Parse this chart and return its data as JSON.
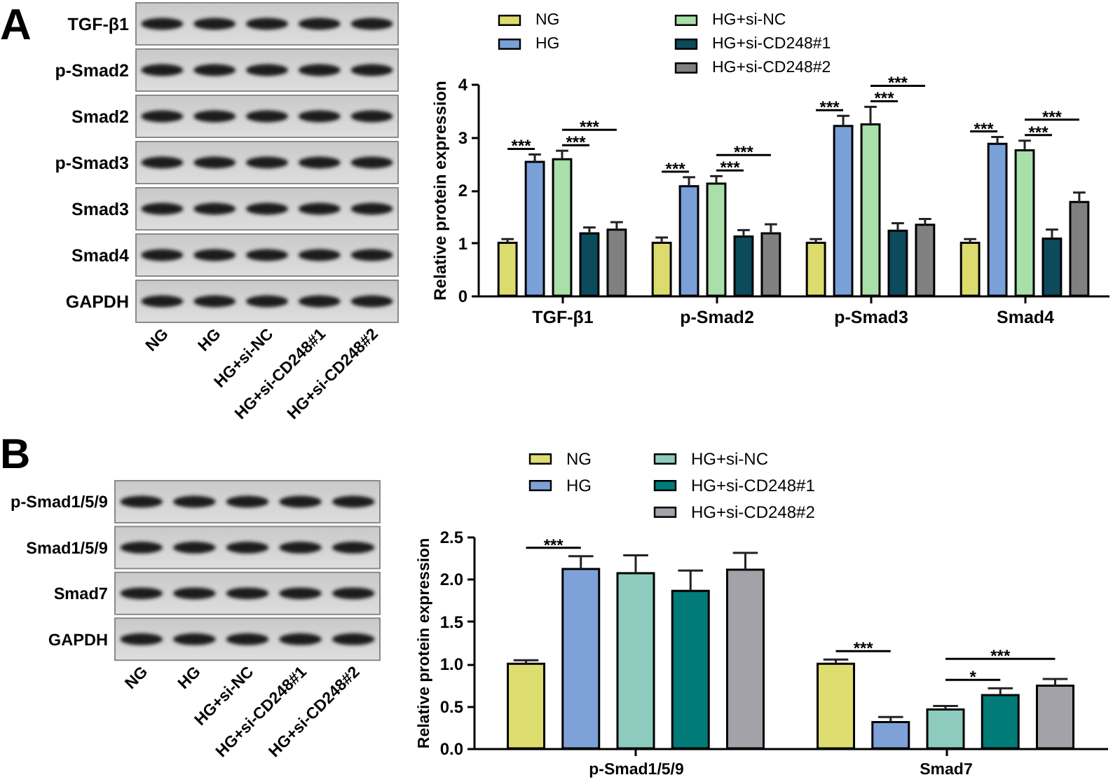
{
  "chart_data": [
    {
      "type": "other",
      "title": "A",
      "categories": [
        "NG",
        "HG",
        "HG+si-NC",
        "HG+si-CD248#1",
        "HG+si-CD248#2"
      ],
      "annotations": [
        "TGF-β1",
        "p-Smad2",
        "Smad2",
        "p-Smad3",
        "Smad3",
        "Smad4",
        "GAPDH"
      ]
    },
    {
      "type": "bar",
      "categories": [
        "TGF-β1",
        "p-Smad2",
        "p-Smad3",
        "Smad4"
      ],
      "ylabel": "Relative protein expression",
      "ylim": [
        0,
        4
      ],
      "yticks": [
        0,
        1,
        2,
        3,
        4
      ],
      "legend": "top",
      "series": [
        {
          "name": "NG",
          "color": "#dcdc6e",
          "values": [
            1.0,
            1.0,
            1.0,
            1.0
          ],
          "errors": [
            [
              1.0,
              1.07
            ],
            [
              1.0,
              1.1
            ],
            [
              1.0,
              1.07
            ],
            [
              1.0,
              1.07
            ]
          ]
        },
        {
          "name": "HG",
          "color": "#7aa0d8",
          "values": [
            2.53,
            2.07,
            3.21,
            2.87
          ],
          "errors": [
            [
              2.53,
              2.67
            ],
            [
              2.07,
              2.24
            ],
            [
              3.21,
              3.4
            ],
            [
              2.87,
              3.0
            ]
          ]
        },
        {
          "name": "HG+si-NC",
          "color": "#a9dfa9",
          "values": [
            2.58,
            2.12,
            3.24,
            2.75
          ],
          "errors": [
            [
              2.58,
              2.74
            ],
            [
              2.12,
              2.26
            ],
            [
              3.24,
              3.57
            ],
            [
              2.75,
              2.93
            ]
          ]
        },
        {
          "name": "HG+si-CD248#1",
          "color": "#0b4b5c",
          "values": [
            1.18,
            1.12,
            1.23,
            1.08
          ],
          "errors": [
            [
              1.18,
              1.29
            ],
            [
              1.12,
              1.24
            ],
            [
              1.23,
              1.37
            ],
            [
              1.08,
              1.25
            ]
          ]
        },
        {
          "name": "HG+si-CD248#2",
          "color": "#808080",
          "values": [
            1.25,
            1.18,
            1.34,
            1.77
          ],
          "errors": [
            [
              1.25,
              1.39
            ],
            [
              1.18,
              1.35
            ],
            [
              1.34,
              1.45
            ],
            [
              1.77,
              1.95
            ]
          ]
        }
      ],
      "annotations": [
        "***",
        "***",
        "***",
        "***",
        "***",
        "***",
        "***",
        "***",
        "***",
        "***",
        "***",
        "***"
      ]
    },
    {
      "type": "other",
      "title": "B",
      "categories": [
        "NG",
        "HG",
        "HG+si-NC",
        "HG+si-CD248#1",
        "HG+si-CD248#2"
      ],
      "annotations": [
        "p-Smad1/5/9",
        "Smad1/5/9",
        "Smad7",
        "GAPDH"
      ]
    },
    {
      "type": "bar",
      "categories": [
        "p-Smad1/5/9",
        "Smad7"
      ],
      "ylabel": "Relative protein expression",
      "ylim": [
        0,
        2.5
      ],
      "yticks": [
        {
          "value": 0,
          "label": "0.0"
        },
        0.5,
        {
          "value": 1,
          "label": "1.0"
        },
        1.5,
        {
          "value": 2,
          "label": "2.0"
        },
        2.5
      ],
      "legend": "top",
      "series": [
        {
          "name": "NG",
          "color": "#dedd70",
          "values": [
            1.0,
            1.0
          ],
          "errors": [
            [
              1.0,
              1.04
            ],
            [
              1.0,
              1.05
            ]
          ]
        },
        {
          "name": "HG",
          "color": "#7ea2d8",
          "values": [
            2.12,
            0.31
          ],
          "errors": [
            [
              2.12,
              2.27
            ],
            [
              0.31,
              0.37
            ]
          ]
        },
        {
          "name": "HG+si-NC",
          "color": "#8ecbbf",
          "values": [
            2.07,
            0.46
          ],
          "errors": [
            [
              2.07,
              2.28
            ],
            [
              0.46,
              0.5
            ]
          ]
        },
        {
          "name": "HG+si-CD248#1",
          "color": "#007b78",
          "values": [
            1.86,
            0.63
          ],
          "errors": [
            [
              1.86,
              2.1
            ],
            [
              0.63,
              0.71
            ]
          ]
        },
        {
          "name": "HG+si-CD248#2",
          "color": "#a2a2a8",
          "values": [
            2.11,
            0.74
          ],
          "errors": [
            [
              2.11,
              2.31
            ],
            [
              0.74,
              0.82
            ]
          ]
        }
      ],
      "annotations": [
        "***",
        "***",
        "*",
        "***"
      ]
    }
  ]
}
